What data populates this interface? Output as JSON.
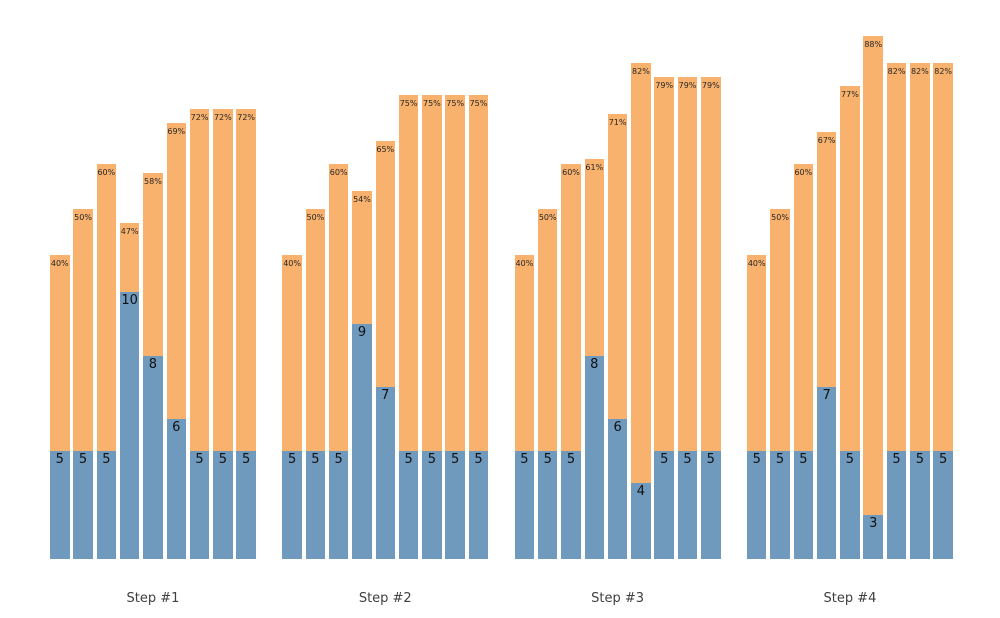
{
  "page": {
    "background_color": "#ffffff"
  },
  "chart_data": {
    "type": "bar",
    "subtype": "grouped-two-segment-columns",
    "title": "",
    "xlabel": "",
    "ylabel": "",
    "grid": false,
    "axes_visible": false,
    "legend": "none",
    "colors": {
      "base_segment": "#6f99bd",
      "pct_segment": "#f8b26d",
      "pct_label_text": "#262626",
      "value_label_text": "#111111",
      "step_label_text": "#3f3f3f"
    },
    "pct_axis_range_visible": [
      40,
      88
    ],
    "steps": [
      {
        "label": "Step #1",
        "bars": [
          {
            "value": 5,
            "pct": 40
          },
          {
            "value": 5,
            "pct": 50
          },
          {
            "value": 5,
            "pct": 60
          },
          {
            "value": 10,
            "pct": 47
          },
          {
            "value": 8,
            "pct": 58
          },
          {
            "value": 6,
            "pct": 69
          },
          {
            "value": 5,
            "pct": 72
          },
          {
            "value": 5,
            "pct": 72
          },
          {
            "value": 5,
            "pct": 72
          }
        ]
      },
      {
        "label": "Step #2",
        "bars": [
          {
            "value": 5,
            "pct": 40
          },
          {
            "value": 5,
            "pct": 50
          },
          {
            "value": 5,
            "pct": 60
          },
          {
            "value": 9,
            "pct": 54
          },
          {
            "value": 7,
            "pct": 65
          },
          {
            "value": 5,
            "pct": 75
          },
          {
            "value": 5,
            "pct": 75
          },
          {
            "value": 5,
            "pct": 75
          },
          {
            "value": 5,
            "pct": 75
          }
        ]
      },
      {
        "label": "Step #3",
        "bars": [
          {
            "value": 5,
            "pct": 40
          },
          {
            "value": 5,
            "pct": 50
          },
          {
            "value": 5,
            "pct": 60
          },
          {
            "value": 8,
            "pct": 61
          },
          {
            "value": 6,
            "pct": 71
          },
          {
            "value": 4,
            "pct": 82
          },
          {
            "value": 5,
            "pct": 79
          },
          {
            "value": 5,
            "pct": 79
          },
          {
            "value": 5,
            "pct": 79
          }
        ]
      },
      {
        "label": "Step #4",
        "bars": [
          {
            "value": 5,
            "pct": 40
          },
          {
            "value": 5,
            "pct": 50
          },
          {
            "value": 5,
            "pct": 60
          },
          {
            "value": 7,
            "pct": 67
          },
          {
            "value": 5,
            "pct": 77
          },
          {
            "value": 3,
            "pct": 88
          },
          {
            "value": 5,
            "pct": 82
          },
          {
            "value": 5,
            "pct": 82
          },
          {
            "value": 5,
            "pct": 82
          }
        ]
      }
    ]
  }
}
